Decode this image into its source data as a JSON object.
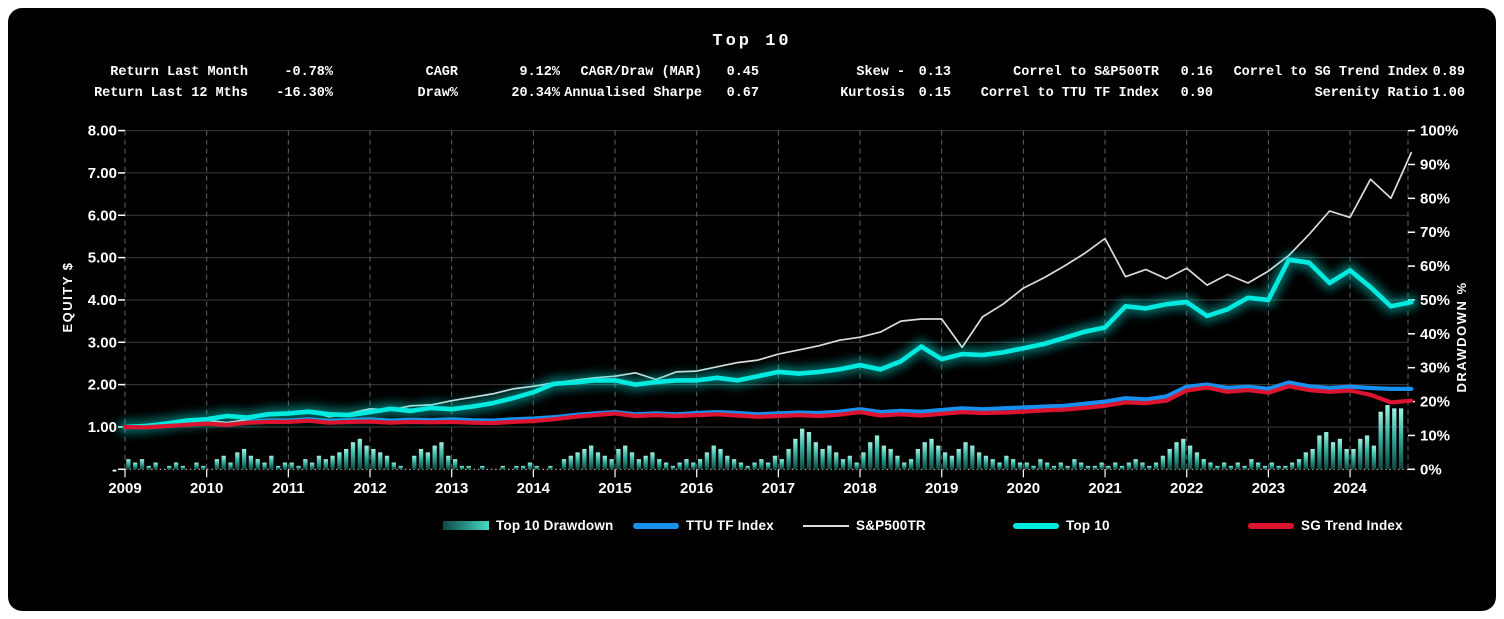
{
  "title": "Top 10",
  "stats": {
    "rows": [
      [
        {
          "label": "Return Last Month",
          "value": "-0.78%"
        },
        {
          "label": "CAGR",
          "value": "9.12%"
        },
        {
          "label": "CAGR/Draw (MAR)",
          "value": "0.45"
        },
        {
          "label": "Skew -",
          "value": "0.13"
        },
        {
          "label": "Correl to S&P500TR",
          "value": "0.16"
        },
        {
          "label": "Correl to SG Trend Index",
          "value": "0.89"
        }
      ],
      [
        {
          "label": "Return Last 12 Mths",
          "value": "-16.30%"
        },
        {
          "label": "Draw%",
          "value": "20.34%"
        },
        {
          "label": "Annualised Sharpe",
          "value": "0.67"
        },
        {
          "label": "Kurtosis",
          "value": "0.15"
        },
        {
          "label": "Correl to TTU TF Index",
          "value": "0.90"
        },
        {
          "label": "Serenity Ratio",
          "value": "1.00"
        }
      ]
    ]
  },
  "colors": {
    "cyan": "#00EADF",
    "blue": "#1790F0",
    "red": "#DC1430",
    "white_line": "#DCDCDC",
    "bar_top": "#9FF0E2",
    "bar_mid": "#36B3A1",
    "bar_bottom": "#10463F",
    "grid": "#3d3d3d",
    "year_grid": "#636363",
    "baseline": "#c8c8c8",
    "text": "#ffffff",
    "legend_grad_left": "#0d4a44",
    "legend_grad_right": "#46d8c6"
  },
  "legend": {
    "items": [
      {
        "label": "Top 10 Drawdown",
        "swatch": "gradient"
      },
      {
        "label": "TTU TF Index",
        "swatch": "line",
        "color": "#1790F0"
      },
      {
        "label": "S&P500TR",
        "swatch": "thin",
        "color": "#DCDCDC"
      },
      {
        "label": "Top 10",
        "swatch": "line",
        "color": "#00EADF"
      },
      {
        "label": "SG Trend Index",
        "swatch": "line",
        "color": "#DC1430"
      }
    ]
  },
  "chart_data": {
    "type": "mixed",
    "title": "Top 10",
    "left_axis": {
      "label": "EQUITY $",
      "range": [
        0,
        8
      ],
      "tick_values": [
        8,
        7,
        6,
        5,
        4,
        3,
        2,
        1,
        0
      ],
      "tick_labels": [
        "8.00",
        "7.00",
        "6.00",
        "5.00",
        "4.00",
        "3.00",
        "2.00",
        "1.00",
        "-"
      ]
    },
    "right_axis": {
      "label": "DRAWDOWN %",
      "range": [
        0,
        100
      ],
      "tick_values": [
        100,
        90,
        80,
        70,
        60,
        50,
        40,
        30,
        20,
        10,
        0
      ],
      "tick_labels": [
        "100%",
        "90%",
        "80%",
        "70%",
        "60%",
        "50%",
        "40%",
        "30%",
        "20%",
        "10%",
        "0%"
      ]
    },
    "x_axis": {
      "ticks": [
        2009,
        2010,
        2011,
        2012,
        2013,
        2014,
        2015,
        2016,
        2017,
        2018,
        2019,
        2020,
        2021,
        2022,
        2023,
        2024
      ]
    },
    "line_x_years": [
      2009,
      2009.25,
      2009.5,
      2009.75,
      2010,
      2010.25,
      2010.5,
      2010.75,
      2011,
      2011.25,
      2011.5,
      2011.75,
      2012,
      2012.25,
      2012.5,
      2012.75,
      2013,
      2013.25,
      2013.5,
      2013.75,
      2014,
      2014.25,
      2014.5,
      2014.75,
      2015,
      2015.25,
      2015.5,
      2015.75,
      2016,
      2016.25,
      2016.5,
      2016.75,
      2017,
      2017.25,
      2017.5,
      2017.75,
      2018,
      2018.25,
      2018.5,
      2018.75,
      2019,
      2019.25,
      2019.5,
      2019.75,
      2020,
      2020.25,
      2020.5,
      2020.75,
      2021,
      2021.25,
      2021.5,
      2021.75,
      2022,
      2022.25,
      2022.5,
      2022.75,
      2023,
      2023.25,
      2023.5,
      2023.75,
      2024,
      2024.25,
      2024.5,
      2024.75
    ],
    "series": [
      {
        "name": "TTU TF Index",
        "type": "line",
        "color": "#1790F0",
        "width": 4.2,
        "glow": false,
        "values": [
          1.0,
          1.03,
          1.06,
          1.09,
          1.11,
          1.08,
          1.12,
          1.15,
          1.15,
          1.18,
          1.14,
          1.16,
          1.18,
          1.15,
          1.17,
          1.16,
          1.18,
          1.16,
          1.15,
          1.18,
          1.2,
          1.23,
          1.28,
          1.32,
          1.35,
          1.3,
          1.32,
          1.3,
          1.33,
          1.35,
          1.33,
          1.3,
          1.32,
          1.34,
          1.33,
          1.36,
          1.42,
          1.35,
          1.38,
          1.36,
          1.4,
          1.44,
          1.42,
          1.44,
          1.46,
          1.48,
          1.5,
          1.55,
          1.6,
          1.68,
          1.65,
          1.72,
          1.95,
          2.0,
          1.92,
          1.95,
          1.9,
          2.05,
          1.96,
          1.92,
          1.95,
          1.92,
          1.9,
          1.9
        ]
      },
      {
        "name": "S&P500TR",
        "type": "line",
        "color": "#DCDCDC",
        "width": 1.7,
        "glow": false,
        "values": [
          1.0,
          0.96,
          1.04,
          1.12,
          1.16,
          1.1,
          1.18,
          1.28,
          1.33,
          1.38,
          1.24,
          1.32,
          1.43,
          1.4,
          1.5,
          1.52,
          1.62,
          1.7,
          1.78,
          1.9,
          1.96,
          2.04,
          2.1,
          2.16,
          2.2,
          2.28,
          2.12,
          2.3,
          2.32,
          2.42,
          2.52,
          2.58,
          2.72,
          2.82,
          2.92,
          3.05,
          3.12,
          3.24,
          3.5,
          3.55,
          3.55,
          2.88,
          3.6,
          3.9,
          4.28,
          4.52,
          4.8,
          5.1,
          5.45,
          4.55,
          4.72,
          4.5,
          4.75,
          4.35,
          4.6,
          4.4,
          4.68,
          5.05,
          5.55,
          6.1,
          5.95,
          6.85,
          6.4,
          7.48
        ]
      },
      {
        "name": "Top 10",
        "type": "line",
        "color": "#00EADF",
        "width": 4.6,
        "glow": true,
        "values": [
          1.0,
          1.02,
          1.08,
          1.15,
          1.18,
          1.26,
          1.22,
          1.3,
          1.32,
          1.36,
          1.3,
          1.28,
          1.35,
          1.43,
          1.38,
          1.45,
          1.42,
          1.48,
          1.56,
          1.68,
          1.82,
          2.02,
          2.05,
          2.1,
          2.1,
          2.0,
          2.06,
          2.1,
          2.1,
          2.16,
          2.1,
          2.2,
          2.3,
          2.26,
          2.3,
          2.36,
          2.46,
          2.36,
          2.55,
          2.9,
          2.6,
          2.72,
          2.7,
          2.76,
          2.86,
          2.96,
          3.1,
          3.25,
          3.35,
          3.85,
          3.8,
          3.9,
          3.95,
          3.62,
          3.78,
          4.05,
          4.0,
          4.95,
          4.88,
          4.4,
          4.7,
          4.3,
          3.85,
          3.95
        ]
      },
      {
        "name": "SG Trend Index",
        "type": "line",
        "color": "#DC1430",
        "width": 4.2,
        "glow": false,
        "values": [
          1.0,
          0.99,
          1.02,
          1.05,
          1.08,
          1.05,
          1.1,
          1.12,
          1.12,
          1.15,
          1.1,
          1.12,
          1.13,
          1.1,
          1.12,
          1.11,
          1.12,
          1.1,
          1.09,
          1.12,
          1.14,
          1.18,
          1.24,
          1.28,
          1.32,
          1.26,
          1.28,
          1.26,
          1.28,
          1.3,
          1.27,
          1.24,
          1.26,
          1.28,
          1.26,
          1.29,
          1.35,
          1.27,
          1.3,
          1.27,
          1.31,
          1.35,
          1.33,
          1.34,
          1.36,
          1.39,
          1.41,
          1.45,
          1.5,
          1.58,
          1.56,
          1.62,
          1.86,
          1.93,
          1.83,
          1.87,
          1.81,
          1.96,
          1.87,
          1.83,
          1.86,
          1.76,
          1.58,
          1.62
        ]
      }
    ],
    "drawdown": {
      "name": "Top 10 Drawdown",
      "unit": "%",
      "monthly_start": "2009-01",
      "values": [
        3,
        2,
        3,
        1,
        2,
        0,
        1,
        2,
        1,
        0,
        2,
        1,
        0,
        3,
        4,
        2,
        5,
        6,
        4,
        3,
        2,
        4,
        1,
        2,
        2,
        1,
        3,
        2,
        4,
        3,
        4,
        5,
        6,
        8,
        9,
        7,
        6,
        5,
        4,
        2,
        1,
        0,
        4,
        6,
        5,
        7,
        8,
        4,
        3,
        1,
        1,
        0,
        1,
        0,
        0,
        1,
        0,
        1,
        1,
        2,
        1,
        0,
        1,
        0,
        3,
        4,
        5,
        6,
        7,
        5,
        4,
        3,
        6,
        7,
        5,
        3,
        4,
        5,
        3,
        2,
        1,
        2,
        3,
        2,
        3,
        5,
        7,
        6,
        4,
        3,
        2,
        1,
        2,
        3,
        2,
        4,
        3,
        6,
        9,
        12,
        11,
        8,
        6,
        7,
        5,
        3,
        4,
        2,
        5,
        8,
        10,
        7,
        6,
        4,
        2,
        3,
        6,
        8,
        9,
        7,
        5,
        4,
        6,
        8,
        7,
        5,
        4,
        3,
        2,
        4,
        3,
        2,
        2,
        1,
        3,
        2,
        1,
        2,
        1,
        3,
        2,
        1,
        1,
        2,
        1,
        2,
        1,
        2,
        3,
        2,
        1,
        2,
        4,
        6,
        8,
        9,
        7,
        5,
        3,
        2,
        1,
        2,
        1,
        2,
        1,
        3,
        2,
        1,
        2,
        1,
        1,
        2,
        3,
        5,
        6,
        10,
        11,
        8,
        9,
        6,
        6,
        9,
        10,
        7,
        17,
        19,
        18,
        18
      ]
    }
  }
}
